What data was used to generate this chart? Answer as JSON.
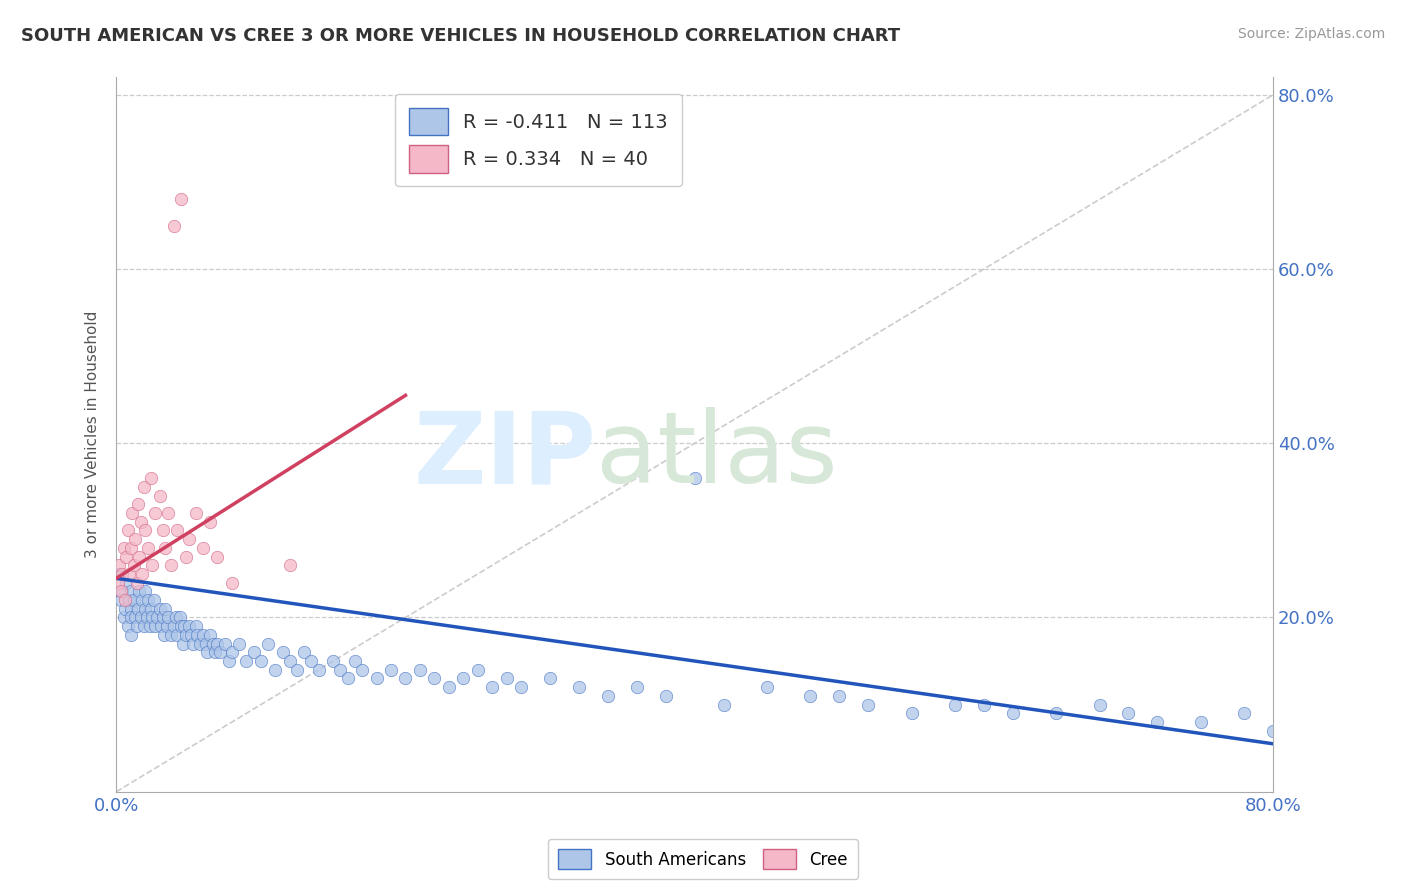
{
  "title": "SOUTH AMERICAN VS CREE 3 OR MORE VEHICLES IN HOUSEHOLD CORRELATION CHART",
  "source": "Source: ZipAtlas.com",
  "ylabel": "3 or more Vehicles in Household",
  "south_american_color": "#aec6e8",
  "south_american_edge": "#4472c4",
  "cree_color": "#f4b8c8",
  "cree_edge": "#d06080",
  "blue_line_color": "#2255bb",
  "pink_line_color": "#d04060",
  "diagonal_color": "#cccccc",
  "xlim": [
    0.0,
    0.8
  ],
  "ylim": [
    0.0,
    0.82
  ],
  "legend_label1": "R = -0.411   N = 113",
  "legend_label2": "R = 0.334   N = 40",
  "sa_x": [
    0.002,
    0.003,
    0.004,
    0.005,
    0.006,
    0.007,
    0.008,
    0.009,
    0.01,
    0.01,
    0.01,
    0.01,
    0.012,
    0.013,
    0.014,
    0.015,
    0.016,
    0.017,
    0.018,
    0.019,
    0.02,
    0.02,
    0.021,
    0.022,
    0.023,
    0.024,
    0.025,
    0.026,
    0.027,
    0.028,
    0.03,
    0.031,
    0.032,
    0.033,
    0.034,
    0.035,
    0.036,
    0.038,
    0.04,
    0.041,
    0.042,
    0.044,
    0.045,
    0.046,
    0.047,
    0.048,
    0.05,
    0.052,
    0.053,
    0.055,
    0.056,
    0.058,
    0.06,
    0.062,
    0.063,
    0.065,
    0.067,
    0.068,
    0.07,
    0.072,
    0.075,
    0.078,
    0.08,
    0.085,
    0.09,
    0.095,
    0.1,
    0.105,
    0.11,
    0.115,
    0.12,
    0.125,
    0.13,
    0.135,
    0.14,
    0.15,
    0.155,
    0.16,
    0.165,
    0.17,
    0.18,
    0.19,
    0.2,
    0.21,
    0.22,
    0.23,
    0.24,
    0.25,
    0.26,
    0.27,
    0.28,
    0.3,
    0.32,
    0.34,
    0.36,
    0.38,
    0.4,
    0.42,
    0.45,
    0.48,
    0.5,
    0.52,
    0.55,
    0.58,
    0.6,
    0.62,
    0.65,
    0.68,
    0.7,
    0.72,
    0.75,
    0.78,
    0.8
  ],
  "sa_y": [
    0.25,
    0.22,
    0.23,
    0.2,
    0.21,
    0.24,
    0.19,
    0.22,
    0.23,
    0.21,
    0.2,
    0.18,
    0.22,
    0.2,
    0.19,
    0.21,
    0.23,
    0.2,
    0.22,
    0.19,
    0.23,
    0.21,
    0.2,
    0.22,
    0.19,
    0.21,
    0.2,
    0.22,
    0.19,
    0.2,
    0.21,
    0.19,
    0.2,
    0.18,
    0.21,
    0.19,
    0.2,
    0.18,
    0.19,
    0.2,
    0.18,
    0.2,
    0.19,
    0.17,
    0.19,
    0.18,
    0.19,
    0.18,
    0.17,
    0.19,
    0.18,
    0.17,
    0.18,
    0.17,
    0.16,
    0.18,
    0.17,
    0.16,
    0.17,
    0.16,
    0.17,
    0.15,
    0.16,
    0.17,
    0.15,
    0.16,
    0.15,
    0.17,
    0.14,
    0.16,
    0.15,
    0.14,
    0.16,
    0.15,
    0.14,
    0.15,
    0.14,
    0.13,
    0.15,
    0.14,
    0.13,
    0.14,
    0.13,
    0.14,
    0.13,
    0.12,
    0.13,
    0.14,
    0.12,
    0.13,
    0.12,
    0.13,
    0.12,
    0.11,
    0.12,
    0.11,
    0.36,
    0.1,
    0.12,
    0.11,
    0.11,
    0.1,
    0.09,
    0.1,
    0.1,
    0.09,
    0.09,
    0.1,
    0.09,
    0.08,
    0.08,
    0.09,
    0.07
  ],
  "cree_x": [
    0.001,
    0.002,
    0.003,
    0.004,
    0.005,
    0.006,
    0.007,
    0.008,
    0.009,
    0.01,
    0.011,
    0.012,
    0.013,
    0.014,
    0.015,
    0.016,
    0.017,
    0.018,
    0.019,
    0.02,
    0.022,
    0.024,
    0.025,
    0.027,
    0.03,
    0.032,
    0.034,
    0.036,
    0.038,
    0.04,
    0.042,
    0.045,
    0.048,
    0.05,
    0.055,
    0.06,
    0.065,
    0.07,
    0.08,
    0.12
  ],
  "cree_y": [
    0.24,
    0.26,
    0.23,
    0.25,
    0.28,
    0.22,
    0.27,
    0.3,
    0.25,
    0.28,
    0.32,
    0.26,
    0.29,
    0.24,
    0.33,
    0.27,
    0.31,
    0.25,
    0.35,
    0.3,
    0.28,
    0.36,
    0.26,
    0.32,
    0.34,
    0.3,
    0.28,
    0.32,
    0.26,
    0.65,
    0.3,
    0.68,
    0.27,
    0.29,
    0.32,
    0.28,
    0.31,
    0.27,
    0.24,
    0.26
  ],
  "sa_line_x": [
    0.0,
    0.8
  ],
  "sa_line_y": [
    0.245,
    0.055
  ],
  "cree_line_x": [
    0.0,
    0.2
  ],
  "cree_line_y": [
    0.245,
    0.455
  ]
}
